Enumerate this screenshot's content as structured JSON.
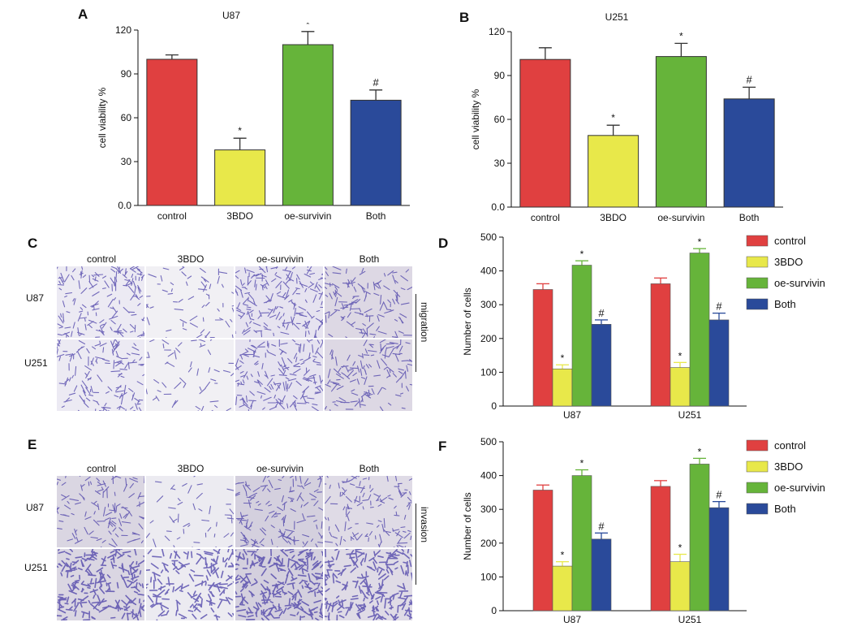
{
  "panels": {
    "A": {
      "letter": "A",
      "title": "U87"
    },
    "B": {
      "letter": "B",
      "title": "U251"
    },
    "C": {
      "letter": "C"
    },
    "D": {
      "letter": "D"
    },
    "E": {
      "letter": "E"
    },
    "F": {
      "letter": "F"
    }
  },
  "micrographs": {
    "columns": [
      "control",
      "3BDO",
      "oe-survivin",
      "Both"
    ],
    "rows": [
      "U87",
      "U251"
    ],
    "migration_label": "migration",
    "invasion_label": "invasion"
  },
  "colors": {
    "control": "#e04040",
    "3BDO": "#e8e84a",
    "oe-survivin": "#66b43a",
    "Both": "#2a4a9a",
    "stain": "#4a3fa8"
  },
  "chart_data": [
    {
      "id": "A",
      "type": "bar",
      "title": "U87",
      "ylabel": "cell viability %",
      "categories": [
        "control",
        "3BDO",
        "oe-survivin",
        "Both"
      ],
      "values": [
        100,
        38,
        110,
        72
      ],
      "errors": [
        3,
        8,
        9,
        7
      ],
      "annotations": [
        "",
        "*",
        "*",
        "#"
      ],
      "ylim": [
        0,
        120
      ],
      "yticks": [
        0,
        30,
        60,
        90,
        120
      ],
      "ytick_labels": [
        "0.0",
        "30",
        "60",
        "90",
        "120"
      ]
    },
    {
      "id": "B",
      "type": "bar",
      "title": "U251",
      "ylabel": "cell viability %",
      "categories": [
        "control",
        "3BDO",
        "oe-survivin",
        "Both"
      ],
      "values": [
        101,
        49,
        103,
        74
      ],
      "errors": [
        8,
        7,
        9,
        8
      ],
      "annotations": [
        "",
        "*",
        "*",
        "#"
      ],
      "ylim": [
        0,
        120
      ],
      "yticks": [
        0,
        30,
        60,
        90,
        120
      ],
      "ytick_labels": [
        "0.0",
        "30",
        "60",
        "90",
        "120"
      ]
    },
    {
      "id": "D",
      "type": "bar",
      "ylabel": "Number of cells",
      "categories": [
        "U87",
        "U251"
      ],
      "series": [
        {
          "name": "control",
          "values": [
            345,
            362
          ],
          "errors": [
            17,
            17
          ],
          "annotations": [
            "",
            ""
          ]
        },
        {
          "name": "3BDO",
          "values": [
            110,
            114
          ],
          "errors": [
            12,
            15
          ],
          "annotations": [
            "*",
            "*"
          ]
        },
        {
          "name": "oe-survivin",
          "values": [
            417,
            453
          ],
          "errors": [
            13,
            13
          ],
          "annotations": [
            "*",
            "*"
          ]
        },
        {
          "name": "Both",
          "values": [
            242,
            255
          ],
          "errors": [
            13,
            20
          ],
          "annotations": [
            "#",
            "#"
          ]
        }
      ],
      "ylim": [
        0,
        500
      ],
      "yticks": [
        0,
        100,
        200,
        300,
        400,
        500
      ],
      "legend": "right"
    },
    {
      "id": "F",
      "type": "bar",
      "ylabel": "Number of cells",
      "categories": [
        "U87",
        "U251"
      ],
      "series": [
        {
          "name": "control",
          "values": [
            357,
            368
          ],
          "errors": [
            15,
            17
          ],
          "annotations": [
            "",
            ""
          ]
        },
        {
          "name": "3BDO",
          "values": [
            132,
            145
          ],
          "errors": [
            13,
            22
          ],
          "annotations": [
            "*",
            "*"
          ]
        },
        {
          "name": "oe-survivin",
          "values": [
            400,
            434
          ],
          "errors": [
            17,
            17
          ],
          "annotations": [
            "*",
            "*"
          ]
        },
        {
          "name": "Both",
          "values": [
            212,
            305
          ],
          "errors": [
            18,
            18
          ],
          "annotations": [
            "#",
            "#"
          ]
        }
      ],
      "ylim": [
        0,
        500
      ],
      "yticks": [
        0,
        100,
        200,
        300,
        400,
        500
      ],
      "legend": "right"
    }
  ]
}
